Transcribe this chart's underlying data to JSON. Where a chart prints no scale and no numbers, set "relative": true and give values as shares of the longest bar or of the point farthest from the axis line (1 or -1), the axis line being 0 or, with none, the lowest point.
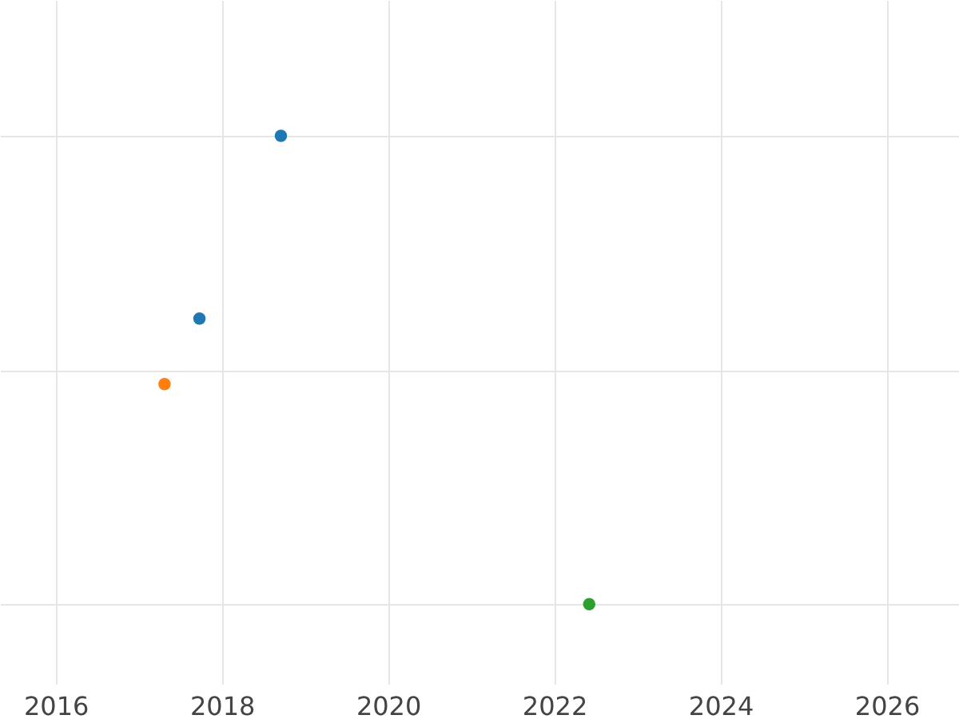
{
  "chart_data": {
    "type": "scatter",
    "relative": true,
    "xlim": [
      2015.33,
      2026.87
    ],
    "xticks": [
      2016,
      2018,
      2020,
      2022,
      2024,
      2026
    ],
    "series": [
      {
        "color": "#1f77b4",
        "x": [
          2018.71,
          2017.73
        ],
        "values": [
          1,
          0.61
        ]
      },
      {
        "color": "#ff7f0e",
        "x": [
          2017.31
        ],
        "values": [
          0.47
        ]
      },
      {
        "color": "#2ca02c",
        "x": [
          2022.42
        ],
        "values": [
          0
        ]
      }
    ],
    "grid": true,
    "marker": "circle",
    "legend": false
  }
}
